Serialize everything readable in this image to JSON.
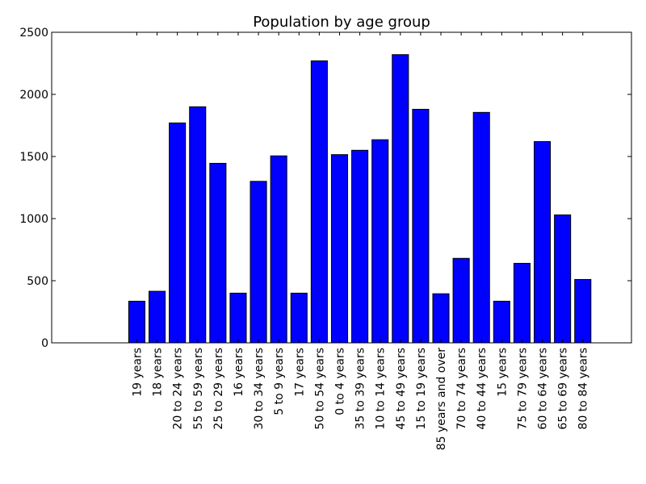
{
  "chart_data": {
    "type": "bar",
    "title": "Population by age group",
    "xlabel": "",
    "ylabel": "",
    "ylim": [
      0,
      2500
    ],
    "yticks": [
      0,
      500,
      1000,
      1500,
      2000,
      2500
    ],
    "grid": false,
    "bar_color": "#0000ff",
    "categories": [
      "19 years",
      "18 years",
      "20 to 24 years",
      "55 to 59 years",
      "25 to 29 years",
      "16 years",
      "30 to 34 years",
      "5 to 9 years",
      "17 years",
      "50 to 54 years",
      "0 to 4 years",
      "35 to 39 years",
      "10 to 14 years",
      "45 to 49 years",
      "15 to 19 years",
      "85 years and over",
      "70 to 74 years",
      "40 to 44 years",
      "15 years",
      "75 to 79 years",
      "60 to 64 years",
      "65 to 69 years",
      "80 to 84 years"
    ],
    "values": [
      335,
      415,
      1770,
      1900,
      1445,
      400,
      1300,
      1505,
      400,
      2270,
      1515,
      1550,
      1635,
      2320,
      1880,
      395,
      680,
      1855,
      335,
      640,
      1620,
      1030,
      510
    ]
  }
}
